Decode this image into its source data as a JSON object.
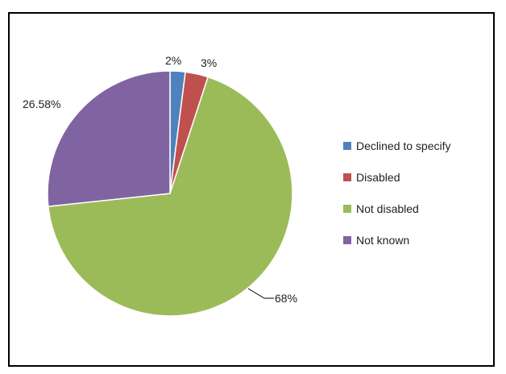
{
  "chart_data": {
    "type": "pie",
    "title": "",
    "slices": [
      {
        "name": "Declined to specify",
        "value": 2,
        "label": "2%",
        "color": "#4f81bd"
      },
      {
        "name": "Disabled",
        "value": 3,
        "label": "3%",
        "color": "#c0504d"
      },
      {
        "name": "Not disabled",
        "value": 68,
        "label": "68%",
        "color": "#9bbb59"
      },
      {
        "name": "Not known",
        "value": 26.58,
        "label": "26.58%",
        "color": "#8064a2"
      }
    ],
    "legend": {
      "position": "right",
      "items": [
        "Declined to specify",
        "Disabled",
        "Not disabled",
        "Not known"
      ]
    }
  }
}
